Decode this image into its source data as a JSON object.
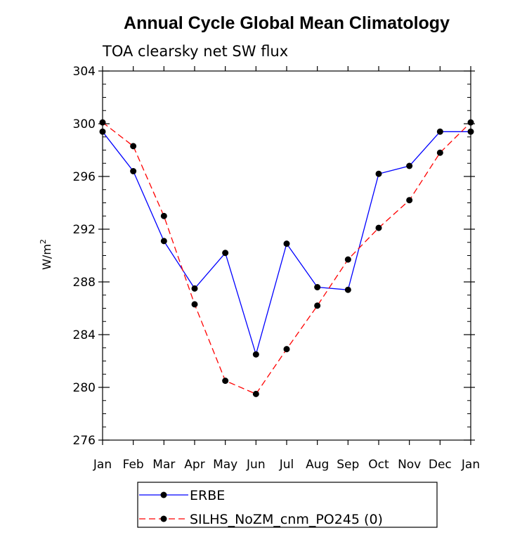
{
  "chart_data": {
    "type": "line",
    "title": "Annual Cycle Global Mean Climatology",
    "subtitle": "TOA clearsky net SW flux",
    "xlabel": "",
    "ylabel": "W/m",
    "ylabel_superscript": "2",
    "ylim": [
      276,
      304
    ],
    "yticks": [
      "276",
      "280",
      "284",
      "288",
      "292",
      "296",
      "300",
      "304"
    ],
    "categories": [
      "Jan",
      "Feb",
      "Mar",
      "Apr",
      "May",
      "Jun",
      "Jul",
      "Aug",
      "Sep",
      "Oct",
      "Nov",
      "Dec",
      "Jan"
    ],
    "grid": false,
    "legend_position": "bottom",
    "series": [
      {
        "name": "ERBE",
        "color": "#0000ff",
        "style": "solid",
        "marker": "circle",
        "values": [
          299.4,
          296.4,
          291.1,
          287.5,
          290.2,
          282.5,
          290.9,
          287.6,
          287.4,
          296.2,
          296.8,
          299.4,
          299.4
        ]
      },
      {
        "name": "SILHS_NoZM_cnm_PO245 (0)",
        "color": "#ff0000",
        "style": "dashed",
        "marker": "circle",
        "values": [
          300.1,
          298.3,
          293.0,
          286.3,
          280.5,
          279.5,
          282.9,
          286.2,
          289.7,
          292.1,
          294.2,
          297.8,
          300.1
        ]
      }
    ]
  }
}
